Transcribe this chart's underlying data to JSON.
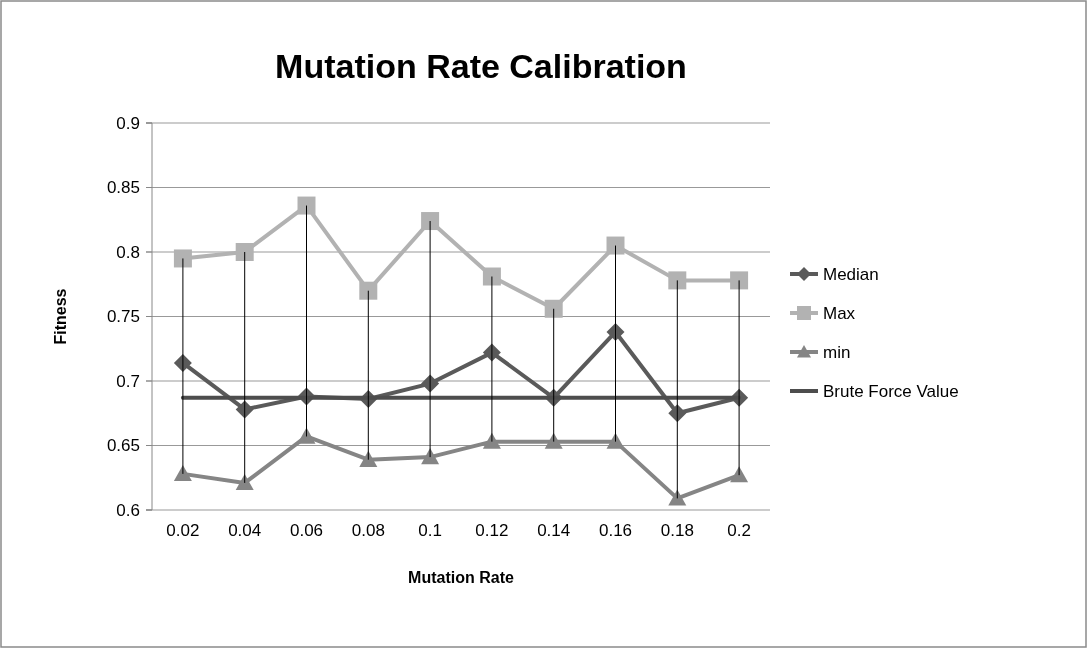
{
  "chart_data": {
    "type": "line",
    "title": "Mutation Rate Calibration",
    "xlabel": "Mutation Rate",
    "ylabel": "Fitness",
    "categories": [
      "0.02",
      "0.04",
      "0.06",
      "0.08",
      "0.1",
      "0.12",
      "0.14",
      "0.16",
      "0.18",
      "0.2"
    ],
    "series": [
      {
        "name": "Median",
        "color": "#5a5a5a",
        "marker": "diamond",
        "values": [
          0.714,
          0.678,
          0.688,
          0.686,
          0.698,
          0.722,
          0.687,
          0.738,
          0.675,
          0.687
        ],
        "errors": [
          [
            0.628,
            0.795
          ],
          [
            0.621,
            0.8
          ],
          [
            0.657,
            0.836
          ],
          [
            0.639,
            0.77
          ],
          [
            0.641,
            0.824
          ],
          [
            0.653,
            0.781
          ],
          [
            0.653,
            0.756
          ],
          [
            0.653,
            0.805
          ],
          [
            0.609,
            0.778
          ],
          [
            0.627,
            0.778
          ]
        ]
      },
      {
        "name": "Max",
        "color": "#b2b2b2",
        "marker": "square",
        "values": [
          0.795,
          0.8,
          0.836,
          0.77,
          0.824,
          0.781,
          0.756,
          0.805,
          0.778,
          0.778
        ]
      },
      {
        "name": "min",
        "color": "#858585",
        "marker": "triangle",
        "values": [
          0.628,
          0.621,
          0.657,
          0.639,
          0.641,
          0.653,
          0.653,
          0.653,
          0.609,
          0.627
        ]
      },
      {
        "name": "Brute Force Value",
        "color": "#4d4d4d",
        "marker": "none",
        "values": [
          0.687,
          0.687,
          0.687,
          0.687,
          0.687,
          0.687,
          0.687,
          0.687,
          0.687,
          0.687
        ]
      }
    ],
    "ylim": [
      0.6,
      0.9
    ],
    "yticks": [
      0.6,
      0.65,
      0.7,
      0.75,
      0.8,
      0.85,
      0.9
    ],
    "grid": "y",
    "legend": "right"
  }
}
